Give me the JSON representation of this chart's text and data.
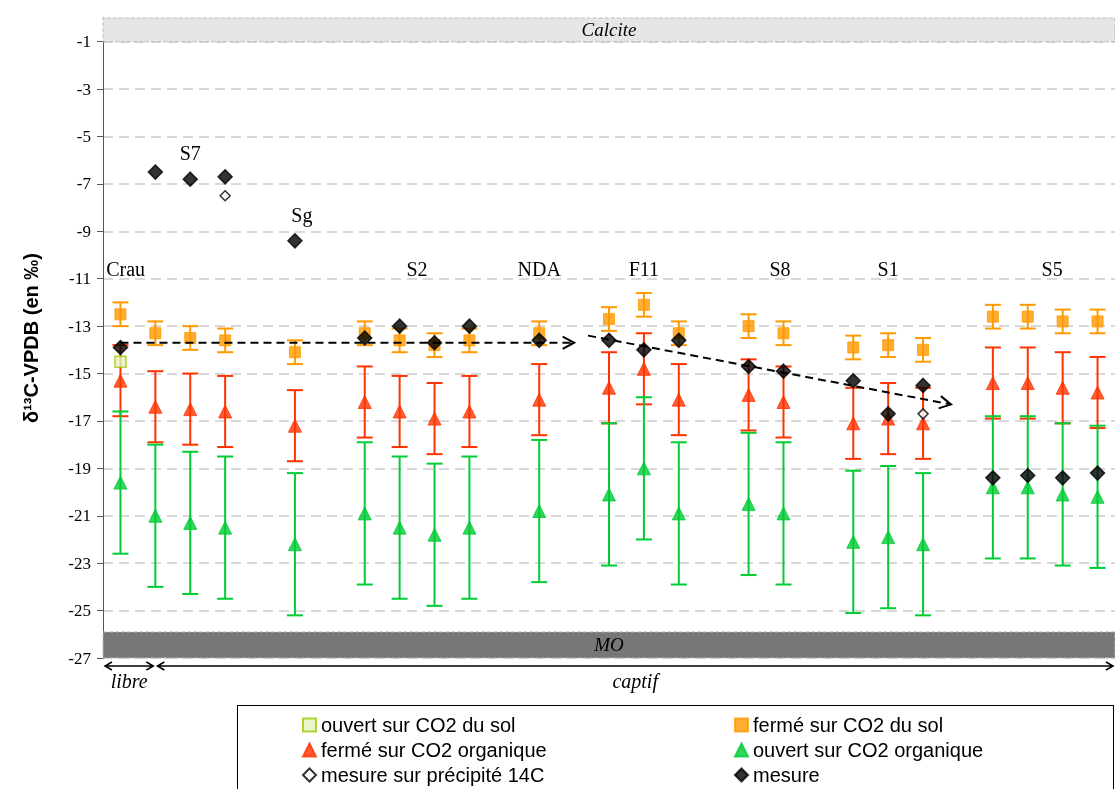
{
  "chart_data": {
    "type": "scatter",
    "ylabel": "δ¹³C-VPDB (en ‰)",
    "categories": [
      null,
      null,
      null,
      null,
      null,
      null,
      null,
      null,
      null,
      null,
      null,
      null,
      null,
      null,
      null,
      null,
      null,
      null,
      null,
      null,
      null,
      null,
      null,
      null,
      null,
      null,
      null,
      null,
      null
    ],
    "ylim": [
      -27,
      0
    ],
    "yticks": [
      -27,
      -25,
      -23,
      -21,
      -19,
      -17,
      -15,
      -13,
      -11,
      -9,
      -7,
      -5,
      -3,
      -1
    ],
    "grid": "y",
    "legend": "bottom",
    "tick_labels": "y",
    "series": [
      {
        "name": "ouvert sur CO2 du sol",
        "color": "#99cc00",
        "marker": "square",
        "values": [
          -14.5,
          null,
          null,
          null,
          null,
          null,
          null,
          null,
          null,
          null,
          null,
          null,
          null,
          null,
          null,
          null,
          null,
          null,
          null,
          null,
          null,
          null,
          null,
          null,
          null,
          null,
          null,
          null,
          null
        ]
      },
      {
        "name": "fermé sur CO2 du sol",
        "color": "#ff9900",
        "marker": "square",
        "values": [
          -12.5,
          -13.3,
          -13.5,
          -13.6,
          null,
          -14.1,
          null,
          -13.3,
          -13.6,
          -13.8,
          -13.6,
          null,
          -13.3,
          null,
          -12.7,
          -12.1,
          -13.3,
          null,
          -13.0,
          -13.3,
          null,
          -13.9,
          -13.8,
          -14.0,
          null,
          -12.6,
          -12.6,
          -12.8,
          -12.8
        ],
        "errors": [
          0.5,
          0.5,
          0.5,
          0.5,
          null,
          0.5,
          null,
          0.5,
          0.5,
          0.5,
          0.5,
          null,
          0.5,
          null,
          0.5,
          0.5,
          0.5,
          null,
          0.5,
          0.5,
          null,
          0.5,
          0.5,
          0.5,
          null,
          0.5,
          0.5,
          0.5,
          0.5
        ]
      },
      {
        "name": "fermé sur CO2 organique",
        "color": "#ff3300",
        "marker": "triangle",
        "values": [
          -15.3,
          -16.4,
          -16.5,
          -16.6,
          null,
          -17.2,
          null,
          -16.2,
          -16.6,
          -16.9,
          -16.6,
          null,
          -16.1,
          null,
          -15.6,
          -14.8,
          -16.1,
          null,
          -15.9,
          -16.2,
          null,
          -17.1,
          -16.9,
          -17.1,
          null,
          -15.4,
          -15.4,
          -15.6,
          -15.8
        ],
        "errors": [
          1.5,
          1.5,
          1.5,
          1.5,
          null,
          1.5,
          null,
          1.5,
          1.5,
          1.5,
          1.5,
          null,
          1.5,
          null,
          1.5,
          1.5,
          1.5,
          null,
          1.5,
          1.5,
          null,
          1.5,
          1.5,
          1.5,
          null,
          1.5,
          1.5,
          1.5,
          1.5
        ]
      },
      {
        "name": "ouvert sur CO2 organique",
        "color": "#00cc33",
        "marker": "triangle",
        "values": [
          -19.6,
          -21.0,
          -21.3,
          -21.5,
          null,
          -22.2,
          null,
          -20.9,
          -21.5,
          -21.8,
          -21.5,
          null,
          -20.8,
          null,
          -20.1,
          -19.0,
          -20.9,
          null,
          -20.5,
          -20.9,
          null,
          -22.1,
          -21.9,
          -22.2,
          null,
          -19.8,
          -19.8,
          -20.1,
          -20.2
        ],
        "errors": [
          3,
          3,
          3,
          3,
          null,
          3,
          null,
          3,
          3,
          3,
          3,
          null,
          3,
          null,
          3,
          3,
          3,
          null,
          3,
          3,
          null,
          3,
          3,
          3,
          null,
          3,
          3,
          3,
          3
        ]
      },
      {
        "name": "mesure sur précipité 14C",
        "color": "#000000",
        "marker": "diamond",
        "values": [
          null,
          null,
          null,
          -7.5,
          null,
          null,
          null,
          null,
          null,
          null,
          null,
          null,
          null,
          null,
          null,
          null,
          null,
          null,
          null,
          null,
          null,
          null,
          null,
          -16.7,
          null,
          null,
          null,
          null,
          null
        ]
      },
      {
        "name": "mesure",
        "color": "#000000",
        "marker": "diamond",
        "values": [
          -13.9,
          -6.5,
          -6.8,
          -6.7,
          null,
          -9.4,
          null,
          -13.5,
          -13.0,
          -13.7,
          -13.0,
          null,
          -13.6,
          null,
          -13.6,
          -14.0,
          -13.6,
          null,
          -14.7,
          -14.9,
          null,
          -15.3,
          -16.7,
          -15.5,
          null,
          -19.4,
          -19.3,
          -19.4,
          -19.2
        ]
      }
    ],
    "bands": [
      {
        "axis": "y",
        "from": -1,
        "to": 0,
        "label": "Calcite",
        "color": "#e6e6e6"
      },
      {
        "axis": "y",
        "from": -27,
        "to": -25.9,
        "label": "MO",
        "color": "#777777"
      }
    ],
    "annotations": [
      "Crau",
      "S7",
      "Sg",
      "S2",
      "NDA",
      "F11",
      "S8",
      "S1",
      "S5",
      "libre",
      "captif"
    ]
  }
}
